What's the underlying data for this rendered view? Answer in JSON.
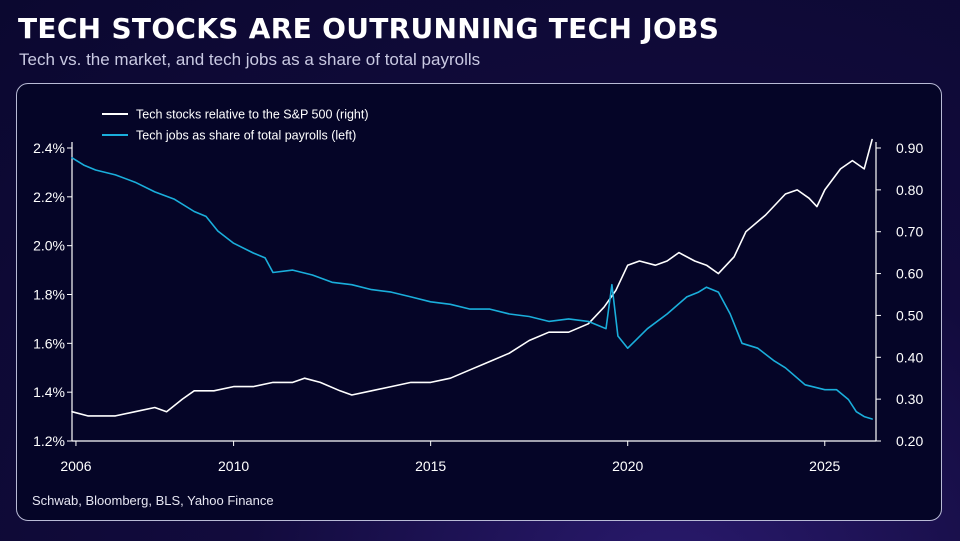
{
  "title": "TECH STOCKS ARE OUTRUNNING TECH JOBS",
  "subtitle": "Tech vs. the market, and tech jobs as a share of total payrolls",
  "source": "Schwab, Bloomberg, BLS, Yahoo Finance",
  "colors": {
    "background": "#0b0830",
    "panel": "#050527",
    "stocks_line": "#ffffff",
    "jobs_line": "#1aaedb",
    "text": "#ffffff"
  },
  "chart_data": {
    "type": "line",
    "title": "TECH STOCKS ARE OUTRUNNING TECH JOBS",
    "subtitle": "Tech vs. the market, and tech jobs as a share of total payrolls",
    "xlabel": "",
    "x_ticks": [
      "2006",
      "2010",
      "2015",
      "2020",
      "2025"
    ],
    "xlim": [
      2005.9,
      2026.3
    ],
    "y_left": {
      "ticks": [
        "2.4%",
        "2.2%",
        "2.0%",
        "1.8%",
        "1.6%",
        "1.4%",
        "1.2%"
      ],
      "tick_values": [
        2.4,
        2.2,
        2.0,
        1.8,
        1.6,
        1.4,
        1.2
      ],
      "ylim": [
        1.2,
        2.4
      ]
    },
    "y_right": {
      "ticks": [
        "0.90",
        "0.80",
        "0.70",
        "0.60",
        "0.50",
        "0.40",
        "0.30",
        "0.20"
      ],
      "tick_values": [
        0.9,
        0.8,
        0.7,
        0.6,
        0.5,
        0.4,
        0.3,
        0.2
      ],
      "ylim": [
        0.2,
        0.9
      ]
    },
    "grid": false,
    "legend_position": "top-left",
    "series": [
      {
        "name": "Tech stocks relative to the S&P 500 (right)",
        "axis": "right",
        "color": "#ffffff",
        "x": [
          2005.9,
          2006.3,
          2006.6,
          2007.0,
          2007.5,
          2008.0,
          2008.3,
          2008.7,
          2009.0,
          2009.5,
          2010.0,
          2010.5,
          2011.0,
          2011.5,
          2011.8,
          2012.2,
          2012.7,
          2013.0,
          2013.5,
          2014.0,
          2014.5,
          2015.0,
          2015.5,
          2016.0,
          2016.5,
          2017.0,
          2017.5,
          2018.0,
          2018.5,
          2019.0,
          2019.4,
          2019.7,
          2020.0,
          2020.3,
          2020.7,
          2021.0,
          2021.3,
          2021.7,
          2022.0,
          2022.3,
          2022.7,
          2023.0,
          2023.5,
          2024.0,
          2024.3,
          2024.6,
          2024.8,
          2025.0,
          2025.4,
          2025.7,
          2026.0,
          2026.2
        ],
        "y": [
          0.27,
          0.26,
          0.26,
          0.26,
          0.27,
          0.28,
          0.27,
          0.3,
          0.32,
          0.32,
          0.33,
          0.33,
          0.34,
          0.34,
          0.35,
          0.34,
          0.32,
          0.31,
          0.32,
          0.33,
          0.34,
          0.34,
          0.35,
          0.37,
          0.39,
          0.41,
          0.44,
          0.46,
          0.46,
          0.48,
          0.52,
          0.56,
          0.62,
          0.63,
          0.62,
          0.63,
          0.65,
          0.63,
          0.62,
          0.6,
          0.64,
          0.7,
          0.74,
          0.79,
          0.8,
          0.78,
          0.76,
          0.8,
          0.85,
          0.87,
          0.85,
          0.92
        ]
      },
      {
        "name": "Tech jobs as share of total payrolls (left)",
        "axis": "left",
        "color": "#1aaedb",
        "x": [
          2005.9,
          2006.2,
          2006.5,
          2007.0,
          2007.5,
          2008.0,
          2008.5,
          2009.0,
          2009.3,
          2009.6,
          2010.0,
          2010.5,
          2010.8,
          2011.0,
          2011.5,
          2012.0,
          2012.5,
          2013.0,
          2013.5,
          2014.0,
          2014.5,
          2015.0,
          2015.5,
          2016.0,
          2016.5,
          2017.0,
          2017.5,
          2018.0,
          2018.5,
          2019.0,
          2019.3,
          2019.45,
          2019.6,
          2019.75,
          2020.0,
          2020.5,
          2021.0,
          2021.5,
          2021.8,
          2022.0,
          2022.3,
          2022.6,
          2022.9,
          2023.3,
          2023.7,
          2024.0,
          2024.5,
          2025.0,
          2025.3,
          2025.6,
          2025.8,
          2026.0,
          2026.2
        ],
        "y": [
          2.36,
          2.33,
          2.31,
          2.29,
          2.26,
          2.22,
          2.19,
          2.14,
          2.12,
          2.06,
          2.01,
          1.97,
          1.95,
          1.89,
          1.9,
          1.88,
          1.85,
          1.84,
          1.82,
          1.81,
          1.79,
          1.77,
          1.76,
          1.74,
          1.74,
          1.72,
          1.71,
          1.69,
          1.7,
          1.69,
          1.67,
          1.66,
          1.84,
          1.63,
          1.58,
          1.66,
          1.72,
          1.79,
          1.81,
          1.83,
          1.81,
          1.72,
          1.6,
          1.58,
          1.53,
          1.5,
          1.43,
          1.41,
          1.41,
          1.37,
          1.32,
          1.3,
          1.29
        ]
      }
    ]
  }
}
